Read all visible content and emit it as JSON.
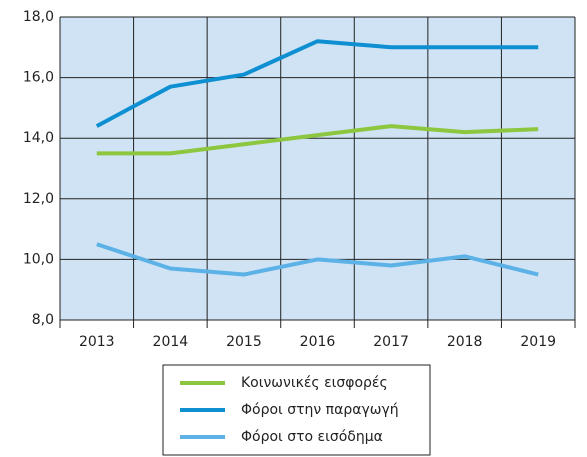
{
  "chart_data": {
    "type": "line",
    "categories": [
      "2013",
      "2014",
      "2015",
      "2016",
      "2017",
      "2018",
      "2019"
    ],
    "series": [
      {
        "name": "Κοινωνικές εισφορές",
        "color": "#8dc63f",
        "values": [
          13.5,
          13.5,
          13.8,
          14.1,
          14.4,
          14.2,
          14.3
        ]
      },
      {
        "name": "Φόροι στην παραγωγή",
        "color": "#0e8fd2",
        "values": [
          14.4,
          15.7,
          16.1,
          17.2,
          17.0,
          17.0,
          17.0
        ]
      },
      {
        "name": "Φόροι στο εισόδημα",
        "color": "#5cb2e6",
        "values": [
          10.5,
          9.7,
          9.5,
          10.0,
          9.8,
          10.1,
          9.5
        ]
      }
    ],
    "ylim": [
      8,
      18
    ],
    "yticks": [
      {
        "value": 8,
        "label": "8,0"
      },
      {
        "value": 10,
        "label": "10,0"
      },
      {
        "value": 12,
        "label": "12,0"
      },
      {
        "value": 14,
        "label": "14,0"
      },
      {
        "value": 16,
        "label": "16,0"
      },
      {
        "value": 18,
        "label": "18,0"
      }
    ],
    "grid": true
  }
}
